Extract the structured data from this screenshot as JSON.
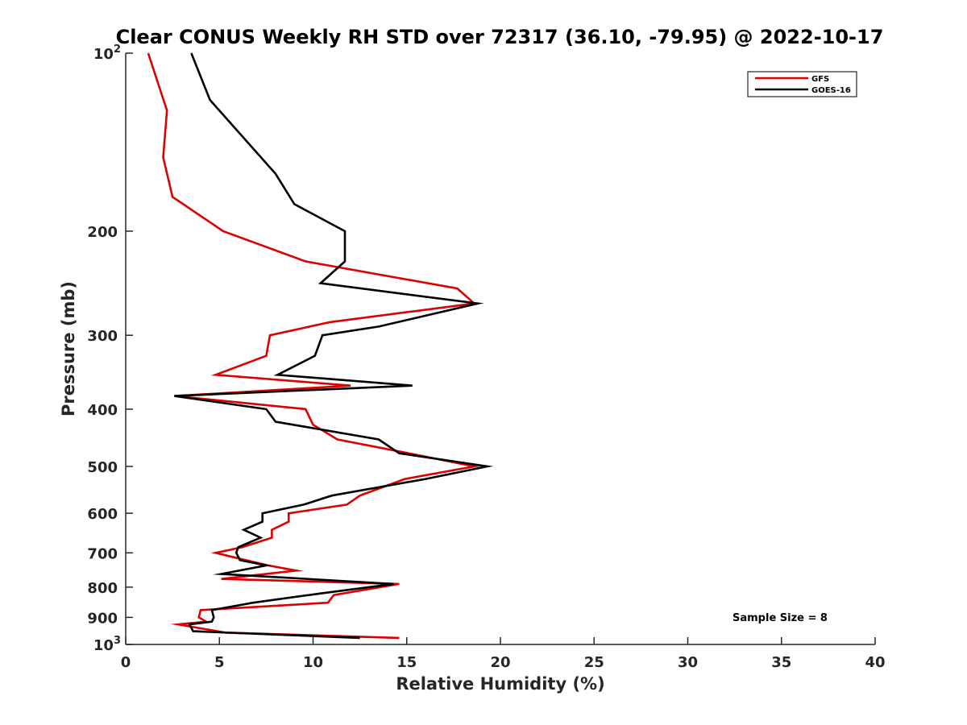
{
  "chart_data": {
    "type": "line",
    "title": "Clear CONUS Weekly RH STD over 72317 (36.10, -79.95) @ 2022-10-17",
    "xlabel": "Relative Humidity (%)",
    "ylabel": "Pressure (mb)",
    "xlim": [
      0,
      40
    ],
    "ylim": [
      100,
      1000
    ],
    "yscale": "log",
    "y_inverted": true,
    "grid": false,
    "legend_position": "top-right",
    "x_ticks": [
      "0",
      "5",
      "10",
      "15",
      "20",
      "25",
      "30",
      "35",
      "40"
    ],
    "y_ticks": [
      {
        "value": 100,
        "base": "10",
        "exp": "2"
      },
      {
        "value": 200,
        "label": "200"
      },
      {
        "value": 300,
        "label": "300"
      },
      {
        "value": 400,
        "label": "400"
      },
      {
        "value": 500,
        "label": "500"
      },
      {
        "value": 600,
        "label": "600"
      },
      {
        "value": 700,
        "label": "700"
      },
      {
        "value": 800,
        "label": "800"
      },
      {
        "value": 900,
        "label": "900"
      },
      {
        "value": 1000,
        "base": "10",
        "exp": "3"
      }
    ],
    "annotation": "Sample Size = 8",
    "series": [
      {
        "name": "GFS",
        "color": "#dd0000",
        "points": [
          [
            1.2,
            100
          ],
          [
            2.2,
            125
          ],
          [
            2.0,
            150
          ],
          [
            2.5,
            175
          ],
          [
            5.2,
            200
          ],
          [
            9.6,
            225
          ],
          [
            17.7,
            250
          ],
          [
            18.6,
            265
          ],
          [
            10.9,
            285
          ],
          [
            7.7,
            300
          ],
          [
            7.5,
            325
          ],
          [
            4.8,
            350
          ],
          [
            12.0,
            365
          ],
          [
            2.6,
            380
          ],
          [
            9.6,
            400
          ],
          [
            10.0,
            425
          ],
          [
            11.3,
            450
          ],
          [
            15.1,
            475
          ],
          [
            18.6,
            500
          ],
          [
            14.9,
            525
          ],
          [
            12.5,
            560
          ],
          [
            11.8,
            580
          ],
          [
            8.7,
            600
          ],
          [
            8.7,
            620
          ],
          [
            7.8,
            640
          ],
          [
            7.8,
            660
          ],
          [
            6.2,
            685
          ],
          [
            4.8,
            700
          ],
          [
            6.4,
            720
          ],
          [
            7.6,
            735
          ],
          [
            9.1,
            750
          ],
          [
            5.1,
            775
          ],
          [
            14.6,
            790
          ],
          [
            11.1,
            825
          ],
          [
            10.8,
            850
          ],
          [
            4.0,
            875
          ],
          [
            3.9,
            900
          ],
          [
            4.3,
            915
          ],
          [
            2.8,
            925
          ],
          [
            5.3,
            955
          ],
          [
            14.6,
            975
          ]
        ]
      },
      {
        "name": "GOES-16",
        "color": "#000000",
        "points": [
          [
            3.5,
            100
          ],
          [
            4.5,
            120
          ],
          [
            8.0,
            160
          ],
          [
            9.0,
            180
          ],
          [
            11.7,
            200
          ],
          [
            11.7,
            225
          ],
          [
            10.4,
            245
          ],
          [
            18.8,
            265
          ],
          [
            13.5,
            290
          ],
          [
            10.5,
            300
          ],
          [
            10.1,
            325
          ],
          [
            8.1,
            350
          ],
          [
            15.3,
            365
          ],
          [
            2.6,
            380
          ],
          [
            7.5,
            400
          ],
          [
            8.0,
            420
          ],
          [
            13.5,
            450
          ],
          [
            14.6,
            475
          ],
          [
            19.3,
            500
          ],
          [
            16.0,
            525
          ],
          [
            11.0,
            560
          ],
          [
            9.5,
            580
          ],
          [
            7.3,
            600
          ],
          [
            7.3,
            620
          ],
          [
            6.3,
            640
          ],
          [
            7.2,
            660
          ],
          [
            6.0,
            685
          ],
          [
            5.9,
            700
          ],
          [
            6.1,
            720
          ],
          [
            7.5,
            735
          ],
          [
            5.1,
            760
          ],
          [
            14.3,
            790
          ],
          [
            10.4,
            820
          ],
          [
            6.8,
            850
          ],
          [
            4.6,
            875
          ],
          [
            4.7,
            900
          ],
          [
            4.6,
            915
          ],
          [
            3.4,
            925
          ],
          [
            3.6,
            950
          ],
          [
            12.5,
            975
          ]
        ]
      }
    ]
  }
}
